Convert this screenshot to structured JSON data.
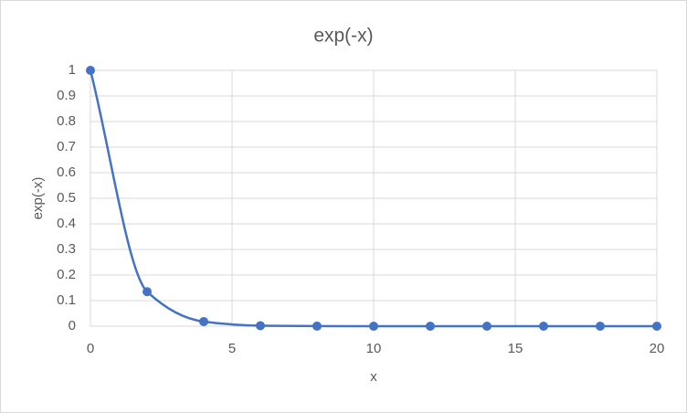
{
  "chart_data": {
    "type": "scatter",
    "title": "exp(-x)",
    "x_label": "x",
    "y_label": "exp(-x)",
    "series": [
      {
        "name": "exp(-x)",
        "color": "#4472c4",
        "x": [
          0,
          2,
          4,
          6,
          8,
          10,
          12,
          14,
          16,
          18,
          20
        ],
        "values": [
          1,
          0.135,
          0.018,
          0.002,
          0.0003,
          0,
          0,
          0,
          0,
          0,
          0
        ]
      }
    ],
    "xlim": [
      0,
      20
    ],
    "xticks": [
      0,
      5,
      10,
      15,
      20
    ],
    "ylim": [
      0,
      1
    ],
    "yticks": [
      0,
      0.1,
      0.2,
      0.3,
      0.4,
      0.5,
      0.6,
      0.7,
      0.8,
      0.9,
      1
    ],
    "grid": true,
    "smooth": true
  }
}
